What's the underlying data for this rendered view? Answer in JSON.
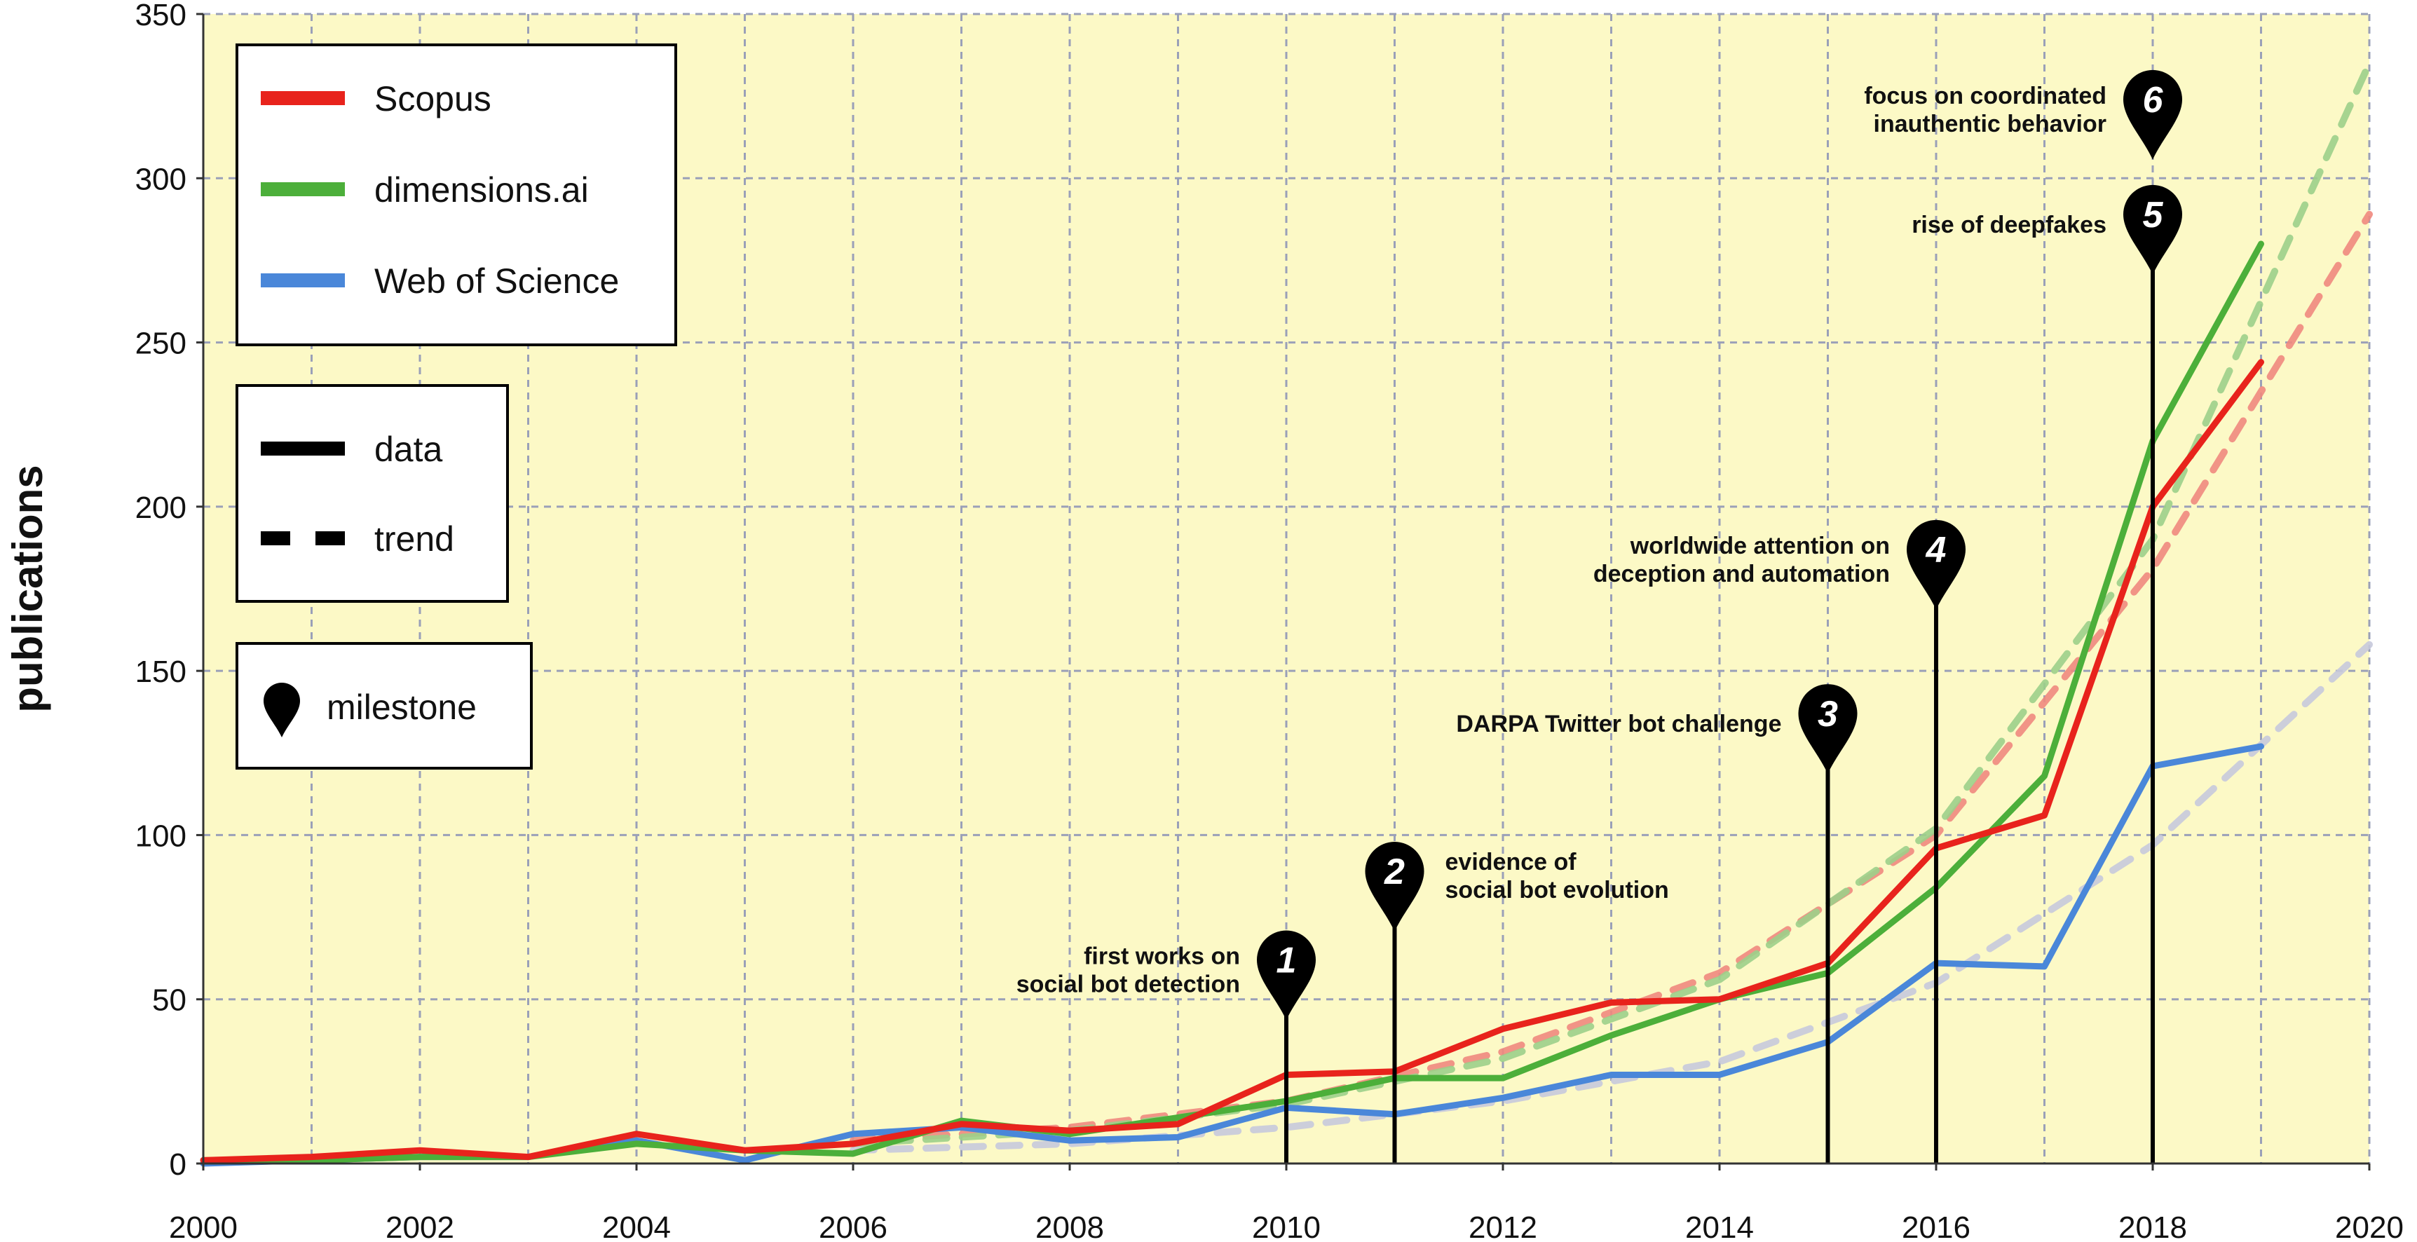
{
  "chart_data": {
    "type": "line",
    "title": "",
    "ylabel": "publications",
    "xlabel": "",
    "xlim": [
      2000,
      2020
    ],
    "ylim": [
      0,
      350
    ],
    "x_ticks": [
      2000,
      2002,
      2004,
      2006,
      2008,
      2010,
      2012,
      2014,
      2016,
      2018,
      2020
    ],
    "y_ticks": [
      0,
      50,
      100,
      150,
      200,
      250,
      300,
      350
    ],
    "grid": true,
    "x": [
      2000,
      2001,
      2002,
      2003,
      2004,
      2005,
      2006,
      2007,
      2008,
      2009,
      2010,
      2011,
      2012,
      2013,
      2014,
      2015,
      2016,
      2017,
      2018,
      2019
    ],
    "series": [
      {
        "name": "Scopus",
        "color": "#e8231c",
        "style": "data",
        "values": [
          1,
          2,
          4,
          2,
          9,
          4,
          6,
          12,
          10,
          12,
          27,
          28,
          41,
          49,
          50,
          61,
          96,
          106,
          200,
          244
        ]
      },
      {
        "name": "dimensions.ai",
        "color": "#4caf3a",
        "style": "data",
        "values": [
          1,
          1,
          2,
          2,
          6,
          4,
          3,
          13,
          9,
          14,
          19,
          26,
          26,
          39,
          50,
          58,
          84,
          118,
          220,
          280
        ]
      },
      {
        "name": "Web of Science",
        "color": "#4a87d9",
        "style": "data",
        "values": [
          0,
          1,
          2,
          2,
          7,
          1,
          9,
          11,
          7,
          8,
          17,
          15,
          20,
          27,
          27,
          37,
          61,
          60,
          121,
          127
        ]
      }
    ],
    "trends": [
      {
        "name": "Scopus",
        "color": "#f0887e",
        "x": [
          2006,
          2008,
          2010,
          2012,
          2014,
          2016,
          2018,
          2020
        ],
        "values": [
          7,
          11,
          19,
          34,
          58,
          100,
          181,
          289
        ]
      },
      {
        "name": "dimensions.ai",
        "color": "#9ccf8a",
        "x": [
          2006,
          2008,
          2010,
          2012,
          2014,
          2016,
          2018,
          2020
        ],
        "values": [
          6,
          10,
          18,
          32,
          56,
          102,
          190,
          335
        ]
      },
      {
        "name": "Web of Science",
        "color": "#c7c9db",
        "x": [
          2006,
          2008,
          2010,
          2012,
          2014,
          2016,
          2018,
          2020
        ],
        "values": [
          4,
          6,
          11,
          19,
          31,
          55,
          97,
          158
        ]
      }
    ],
    "milestones": [
      {
        "number": "1",
        "year": 2010,
        "pin_value": 59,
        "label_lines": [
          "first works on",
          "social bot detection"
        ],
        "label_side": "left"
      },
      {
        "number": "2",
        "year": 2011,
        "pin_value": 86,
        "label_lines": [
          "evidence of",
          "social bot evolution"
        ],
        "label_side": "right"
      },
      {
        "number": "3",
        "year": 2015,
        "pin_value": 134,
        "label_lines": [
          "DARPA Twitter bot challenge"
        ],
        "label_side": "left"
      },
      {
        "number": "4",
        "year": 2016,
        "pin_value": 184,
        "label_lines": [
          "worldwide attention on",
          "deception and automation"
        ],
        "label_side": "left"
      },
      {
        "number": "5",
        "year": 2018,
        "pin_value": 286,
        "label_lines": [
          "rise of deepfakes"
        ],
        "label_side": "left"
      },
      {
        "number": "6",
        "year": 2018,
        "pin_value": 321,
        "label_lines": [
          "focus on coordinated",
          "inauthentic behavior"
        ],
        "label_side": "left"
      }
    ],
    "legend": {
      "placement": "top-left",
      "series_entries": [
        "Scopus",
        "dimensions.ai",
        "Web of Science"
      ],
      "style_entries": [
        "data",
        "trend"
      ],
      "milestone_entry": "milestone"
    },
    "colors": {
      "background": "#fcf9c6",
      "grid": "#9aa0b8"
    }
  }
}
